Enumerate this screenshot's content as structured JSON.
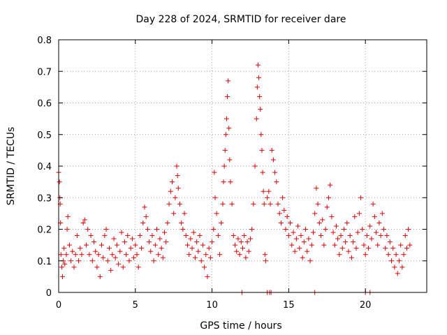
{
  "chart_data": {
    "type": "scatter",
    "title": "Day 228 of 2024, SRMTID for receiver dare",
    "xlabel": "GPS time / hours",
    "ylabel": "SRMTID / TECUs",
    "xlim": [
      0,
      24
    ],
    "ylim": [
      0,
      0.8
    ],
    "xticks": [
      "0",
      "5",
      "10",
      "15",
      "20"
    ],
    "xtick_values": [
      0,
      5,
      10,
      15,
      20
    ],
    "yticks": [
      "0",
      "0.1",
      "0.2",
      "0.3",
      "0.4",
      "0.5",
      "0.6",
      "0.7",
      "0.8"
    ],
    "ytick_values": [
      0,
      0.1,
      0.2,
      0.3,
      0.4,
      0.5,
      0.6,
      0.7,
      0.8
    ],
    "grid": true,
    "marker": "+",
    "color": "#e00000",
    "series": [
      {
        "name": "SRMTID",
        "points": [
          [
            0.0,
            0.38
          ],
          [
            0.05,
            0.35
          ],
          [
            0.08,
            0.3
          ],
          [
            0.1,
            0.28
          ],
          [
            0.12,
            0.22
          ],
          [
            0.15,
            0.12
          ],
          [
            0.2,
            0.08
          ],
          [
            0.25,
            0.05
          ],
          [
            0.3,
            0.1
          ],
          [
            0.35,
            0.14
          ],
          [
            0.4,
            0.09
          ],
          [
            0.5,
            0.12
          ],
          [
            0.55,
            0.2
          ],
          [
            0.6,
            0.24
          ],
          [
            0.7,
            0.15
          ],
          [
            0.8,
            0.1
          ],
          [
            0.9,
            0.13
          ],
          [
            1.0,
            0.08
          ],
          [
            1.1,
            0.12
          ],
          [
            1.2,
            0.18
          ],
          [
            1.3,
            0.1
          ],
          [
            1.4,
            0.14
          ],
          [
            1.5,
            0.12
          ],
          [
            1.6,
            0.22
          ],
          [
            1.7,
            0.23
          ],
          [
            1.8,
            0.15
          ],
          [
            1.9,
            0.2
          ],
          [
            2.0,
            0.12
          ],
          [
            2.1,
            0.18
          ],
          [
            2.2,
            0.1
          ],
          [
            2.3,
            0.16
          ],
          [
            2.4,
            0.13
          ],
          [
            2.5,
            0.08
          ],
          [
            2.6,
            0.12
          ],
          [
            2.7,
            0.05
          ],
          [
            2.8,
            0.15
          ],
          [
            2.9,
            0.11
          ],
          [
            3.0,
            0.18
          ],
          [
            3.1,
            0.2
          ],
          [
            3.2,
            0.1
          ],
          [
            3.3,
            0.14
          ],
          [
            3.4,
            0.07
          ],
          [
            3.5,
            0.12
          ],
          [
            3.6,
            0.17
          ],
          [
            3.7,
            0.11
          ],
          [
            3.8,
            0.15
          ],
          [
            3.9,
            0.09
          ],
          [
            4.0,
            0.13
          ],
          [
            4.1,
            0.19
          ],
          [
            4.2,
            0.08
          ],
          [
            4.3,
            0.16
          ],
          [
            4.4,
            0.12
          ],
          [
            4.5,
            0.18
          ],
          [
            4.6,
            0.1
          ],
          [
            4.7,
            0.14
          ],
          [
            4.8,
            0.17
          ],
          [
            4.9,
            0.11
          ],
          [
            5.0,
            0.15
          ],
          [
            5.1,
            0.12
          ],
          [
            5.2,
            0.08
          ],
          [
            5.3,
            0.18
          ],
          [
            5.4,
            0.14
          ],
          [
            5.5,
            0.22
          ],
          [
            5.6,
            0.27
          ],
          [
            5.7,
            0.24
          ],
          [
            5.8,
            0.2
          ],
          [
            5.9,
            0.16
          ],
          [
            6.0,
            0.13
          ],
          [
            6.1,
            0.18
          ],
          [
            6.2,
            0.1
          ],
          [
            6.3,
            0.15
          ],
          [
            6.4,
            0.2
          ],
          [
            6.5,
            0.12
          ],
          [
            6.6,
            0.17
          ],
          [
            6.7,
            0.14
          ],
          [
            6.8,
            0.11
          ],
          [
            6.9,
            0.19
          ],
          [
            7.0,
            0.16
          ],
          [
            7.1,
            0.22
          ],
          [
            7.2,
            0.28
          ],
          [
            7.3,
            0.32
          ],
          [
            7.4,
            0.35
          ],
          [
            7.5,
            0.25
          ],
          [
            7.6,
            0.3
          ],
          [
            7.7,
            0.4
          ],
          [
            7.75,
            0.37
          ],
          [
            7.8,
            0.33
          ],
          [
            7.9,
            0.28
          ],
          [
            8.0,
            0.22
          ],
          [
            8.1,
            0.2
          ],
          [
            8.2,
            0.25
          ],
          [
            8.3,
            0.18
          ],
          [
            8.4,
            0.15
          ],
          [
            8.5,
            0.12
          ],
          [
            8.6,
            0.17
          ],
          [
            8.7,
            0.14
          ],
          [
            8.8,
            0.19
          ],
          [
            8.9,
            0.11
          ],
          [
            9.0,
            0.16
          ],
          [
            9.1,
            0.13
          ],
          [
            9.2,
            0.18
          ],
          [
            9.3,
            0.1
          ],
          [
            9.4,
            0.15
          ],
          [
            9.5,
            0.08
          ],
          [
            9.6,
            0.12
          ],
          [
            9.7,
            0.05
          ],
          [
            9.8,
            0.14
          ],
          [
            9.9,
            0.11
          ],
          [
            10.0,
            0.16
          ],
          [
            10.1,
            0.2
          ],
          [
            10.15,
            0.38
          ],
          [
            10.2,
            0.3
          ],
          [
            10.3,
            0.25
          ],
          [
            10.4,
            0.18
          ],
          [
            10.5,
            0.12
          ],
          [
            10.6,
            0.22
          ],
          [
            10.7,
            0.28
          ],
          [
            10.75,
            0.35
          ],
          [
            10.8,
            0.4
          ],
          [
            10.85,
            0.45
          ],
          [
            10.9,
            0.5
          ],
          [
            10.95,
            0.55
          ],
          [
            11.0,
            0.62
          ],
          [
            11.05,
            0.67
          ],
          [
            11.1,
            0.52
          ],
          [
            11.15,
            0.42
          ],
          [
            11.2,
            0.35
          ],
          [
            11.3,
            0.28
          ],
          [
            11.4,
            0.18
          ],
          [
            11.5,
            0.15
          ],
          [
            11.6,
            0.13
          ],
          [
            11.7,
            0.17
          ],
          [
            11.8,
            0.12
          ],
          [
            11.9,
            0.16
          ],
          [
            12.0,
            0.14
          ],
          [
            12.1,
            0.18
          ],
          [
            12.2,
            0.11
          ],
          [
            12.3,
            0.16
          ],
          [
            12.4,
            0.13
          ],
          [
            12.5,
            0.17
          ],
          [
            12.6,
            0.2
          ],
          [
            12.7,
            0.28
          ],
          [
            12.8,
            0.4
          ],
          [
            12.9,
            0.55
          ],
          [
            12.95,
            0.65
          ],
          [
            13.0,
            0.72
          ],
          [
            13.05,
            0.68
          ],
          [
            13.1,
            0.62
          ],
          [
            13.15,
            0.58
          ],
          [
            13.2,
            0.5
          ],
          [
            13.25,
            0.45
          ],
          [
            13.3,
            0.38
          ],
          [
            13.35,
            0.32
          ],
          [
            13.4,
            0.28
          ],
          [
            13.45,
            0.12
          ],
          [
            13.5,
            0.1
          ],
          [
            13.6,
            0.3
          ],
          [
            13.7,
            0.32
          ],
          [
            13.8,
            0.28
          ],
          [
            13.9,
            0.45
          ],
          [
            14.0,
            0.42
          ],
          [
            14.1,
            0.38
          ],
          [
            14.2,
            0.35
          ],
          [
            14.3,
            0.28
          ],
          [
            14.4,
            0.25
          ],
          [
            14.5,
            0.22
          ],
          [
            14.6,
            0.3
          ],
          [
            14.7,
            0.26
          ],
          [
            14.8,
            0.2
          ],
          [
            14.9,
            0.24
          ],
          [
            15.0,
            0.18
          ],
          [
            15.1,
            0.22
          ],
          [
            15.2,
            0.15
          ],
          [
            15.3,
            0.19
          ],
          [
            15.4,
            0.13
          ],
          [
            15.5,
            0.17
          ],
          [
            15.6,
            0.21
          ],
          [
            15.7,
            0.14
          ],
          [
            15.8,
            0.18
          ],
          [
            15.9,
            0.11
          ],
          [
            16.0,
            0.16
          ],
          [
            16.1,
            0.2
          ],
          [
            16.2,
            0.13
          ],
          [
            16.3,
            0.17
          ],
          [
            16.4,
            0.1
          ],
          [
            16.5,
            0.15
          ],
          [
            16.6,
            0.19
          ],
          [
            16.7,
            0.25
          ],
          [
            16.8,
            0.33
          ],
          [
            16.9,
            0.28
          ],
          [
            17.0,
            0.22
          ],
          [
            17.1,
            0.18
          ],
          [
            17.2,
            0.23
          ],
          [
            17.3,
            0.15
          ],
          [
            17.4,
            0.2
          ],
          [
            17.5,
            0.27
          ],
          [
            17.6,
            0.3
          ],
          [
            17.7,
            0.34
          ],
          [
            17.8,
            0.24
          ],
          [
            17.9,
            0.19
          ],
          [
            18.0,
            0.15
          ],
          [
            18.1,
            0.21
          ],
          [
            18.2,
            0.17
          ],
          [
            18.3,
            0.12
          ],
          [
            18.4,
            0.18
          ],
          [
            18.5,
            0.14
          ],
          [
            18.6,
            0.2
          ],
          [
            18.7,
            0.16
          ],
          [
            18.8,
            0.22
          ],
          [
            18.9,
            0.13
          ],
          [
            19.0,
            0.18
          ],
          [
            19.1,
            0.11
          ],
          [
            19.2,
            0.16
          ],
          [
            19.3,
            0.24
          ],
          [
            19.4,
            0.14
          ],
          [
            19.5,
            0.19
          ],
          [
            19.6,
            0.25
          ],
          [
            19.7,
            0.3
          ],
          [
            19.8,
            0.2
          ],
          [
            19.9,
            0.15
          ],
          [
            20.0,
            0.12
          ],
          [
            20.1,
            0.18
          ],
          [
            20.2,
            0.14
          ],
          [
            20.3,
            0.21
          ],
          [
            20.4,
            0.17
          ],
          [
            20.5,
            0.28
          ],
          [
            20.6,
            0.24
          ],
          [
            20.7,
            0.19
          ],
          [
            20.8,
            0.15
          ],
          [
            20.9,
            0.22
          ],
          [
            21.0,
            0.18
          ],
          [
            21.1,
            0.25
          ],
          [
            21.2,
            0.2
          ],
          [
            21.3,
            0.14
          ],
          [
            21.4,
            0.18
          ],
          [
            21.5,
            0.12
          ],
          [
            21.6,
            0.16
          ],
          [
            21.7,
            0.1
          ],
          [
            21.8,
            0.14
          ],
          [
            21.9,
            0.08
          ],
          [
            22.0,
            0.12
          ],
          [
            22.1,
            0.06
          ],
          [
            22.2,
            0.1
          ],
          [
            22.3,
            0.15
          ],
          [
            22.4,
            0.08
          ],
          [
            22.5,
            0.12
          ],
          [
            22.6,
            0.18
          ],
          [
            22.7,
            0.14
          ],
          [
            22.8,
            0.2
          ],
          [
            22.9,
            0.15
          ],
          [
            11.95,
            0.0
          ],
          [
            13.6,
            0.0
          ],
          [
            13.75,
            0.0
          ],
          [
            13.85,
            0.0
          ],
          [
            16.7,
            0.0
          ],
          [
            20.0,
            0.0
          ],
          [
            20.3,
            0.0
          ]
        ]
      }
    ]
  }
}
